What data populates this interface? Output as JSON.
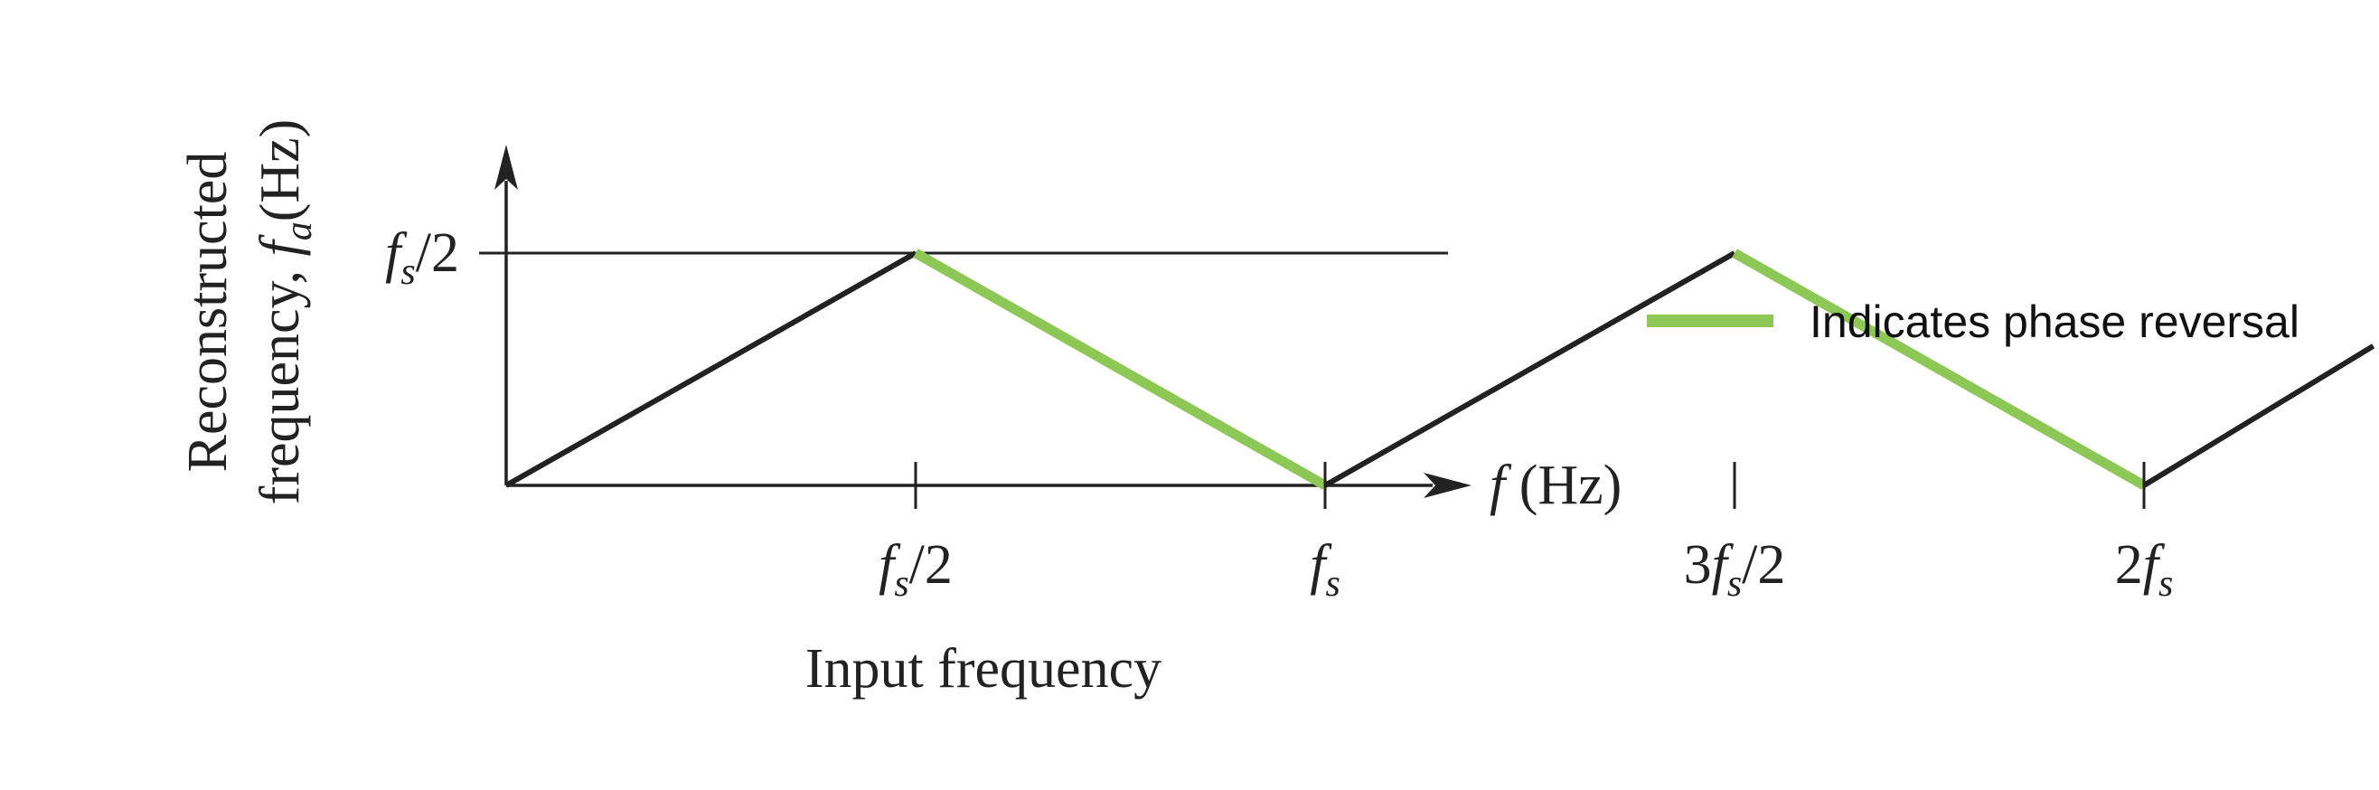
{
  "chart_data": {
    "type": "line",
    "xlabel": "Input frequency",
    "ylabel_line1": "Reconstructed",
    "ylabel_line2": "frequency, ",
    "ylabel_symbol": "f",
    "ylabel_subscript": "a",
    "ylabel_unit": "(Hz)",
    "x_axis_label_symbol": "f",
    "x_axis_label_unit": " (Hz)",
    "xlim": [
      0,
      2.3
    ],
    "ylim": [
      0,
      0.5
    ],
    "x_unit": "fs",
    "y_unit": "fs",
    "x_ticks": [
      {
        "value": 0.5,
        "prefix": "",
        "sub": "s",
        "suffix": "/2"
      },
      {
        "value": 1.0,
        "prefix": "",
        "sub": "s",
        "suffix": ""
      },
      {
        "value": 1.5,
        "prefix": "3",
        "sub": "s",
        "suffix": "/2"
      },
      {
        "value": 2.0,
        "prefix": "2",
        "sub": "s",
        "suffix": ""
      }
    ],
    "y_ticks": [
      {
        "value": 0.5,
        "prefix": "",
        "sub": "s",
        "suffix": "/2"
      }
    ],
    "reference_line": {
      "y": 0.5
    },
    "series": [
      {
        "name": "",
        "color": "#222222",
        "points": [
          [
            0,
            0
          ],
          [
            0.5,
            0.5
          ]
        ]
      },
      {
        "name": "Indicates phase reversal",
        "color": "#8dc857",
        "points": [
          [
            0.5,
            0.5
          ],
          [
            1.0,
            0
          ]
        ]
      },
      {
        "name": "",
        "color": "#222222",
        "points": [
          [
            1.0,
            0
          ],
          [
            1.5,
            0.5
          ]
        ]
      },
      {
        "name": "Indicates phase reversal",
        "color": "#8dc857",
        "points": [
          [
            1.5,
            0.5
          ],
          [
            2.0,
            0
          ]
        ]
      },
      {
        "name": "",
        "color": "#222222",
        "points": [
          [
            2.0,
            0
          ],
          [
            2.28,
            0.3
          ]
        ]
      }
    ],
    "legend": {
      "label": "Indicates phase reversal",
      "color": "#8dc857",
      "placement": "right"
    },
    "colors": {
      "axis": "#222222",
      "black_segment": "#222222",
      "phase_reversal": "#8dc857"
    }
  }
}
